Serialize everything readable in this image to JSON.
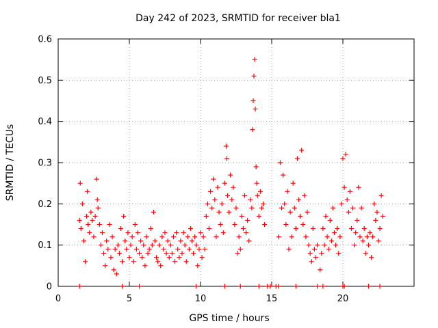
{
  "chart_data": {
    "type": "scatter",
    "title": "Day 242 of 2023, SRMTID for receiver bla1",
    "xlabel": "GPS time / hours",
    "ylabel": "SRMTID / TECUs",
    "xlim": [
      0,
      25
    ],
    "ylim": [
      0,
      0.6
    ],
    "xticks": [
      0,
      5,
      10,
      15,
      20
    ],
    "yticks": [
      0,
      0.1,
      0.2,
      0.3,
      0.4,
      0.5,
      0.6
    ],
    "ytick_labels": [
      "0",
      "0.1",
      "0.2",
      "0.3",
      "0.4",
      "0.5",
      "0.6"
    ],
    "xtick_labels": [
      "0",
      "5",
      "10",
      "15",
      "20"
    ],
    "grid": true,
    "marker": "+",
    "series_color": "#ff0000",
    "series": [
      {
        "name": "SRMTID",
        "points": [
          [
            1.5,
            0.16
          ],
          [
            1.55,
            0.25
          ],
          [
            1.6,
            0.14
          ],
          [
            1.7,
            0.2
          ],
          [
            1.8,
            0.11
          ],
          [
            1.9,
            0.06
          ],
          [
            2.0,
            0.17
          ],
          [
            2.05,
            0.23
          ],
          [
            2.1,
            0.15
          ],
          [
            2.2,
            0.13
          ],
          [
            2.3,
            0.18
          ],
          [
            2.4,
            0.16
          ],
          [
            2.5,
            0.12
          ],
          [
            2.6,
            0.17
          ],
          [
            2.7,
            0.26
          ],
          [
            2.75,
            0.21
          ],
          [
            2.8,
            0.19
          ],
          [
            2.9,
            0.15
          ],
          [
            3.0,
            0.1
          ],
          [
            3.1,
            0.13
          ],
          [
            3.2,
            0.08
          ],
          [
            3.3,
            0.05
          ],
          [
            3.4,
            0.11
          ],
          [
            3.5,
            0.09
          ],
          [
            3.6,
            0.15
          ],
          [
            3.7,
            0.07
          ],
          [
            3.8,
            0.12
          ],
          [
            3.9,
            0.04
          ],
          [
            4.0,
            0.09
          ],
          [
            4.1,
            0.03
          ],
          [
            4.2,
            0.1
          ],
          [
            4.3,
            0.08
          ],
          [
            4.4,
            0.14
          ],
          [
            4.5,
            0.06
          ],
          [
            4.6,
            0.17
          ],
          [
            4.7,
            0.11
          ],
          [
            4.8,
            0.09
          ],
          [
            4.9,
            0.13
          ],
          [
            5.0,
            0.07
          ],
          [
            5.1,
            0.1
          ],
          [
            5.2,
            0.12
          ],
          [
            5.3,
            0.06
          ],
          [
            5.4,
            0.15
          ],
          [
            5.5,
            0.09
          ],
          [
            5.6,
            0.13
          ],
          [
            5.7,
            0.08
          ],
          [
            5.8,
            0.11
          ],
          [
            5.9,
            0.07
          ],
          [
            6.0,
            0.1
          ],
          [
            6.1,
            0.05
          ],
          [
            6.2,
            0.12
          ],
          [
            6.3,
            0.08
          ],
          [
            6.4,
            0.09
          ],
          [
            6.5,
            0.14
          ],
          [
            6.6,
            0.1
          ],
          [
            6.7,
            0.18
          ],
          [
            6.8,
            0.11
          ],
          [
            6.9,
            0.07
          ],
          [
            7.0,
            0.06
          ],
          [
            7.1,
            0.1
          ],
          [
            7.2,
            0.05
          ],
          [
            7.3,
            0.12
          ],
          [
            7.4,
            0.09
          ],
          [
            7.5,
            0.13
          ],
          [
            7.6,
            0.08
          ],
          [
            7.7,
            0.11
          ],
          [
            7.8,
            0.07
          ],
          [
            7.9,
            0.1
          ],
          [
            8.0,
            0.08
          ],
          [
            8.1,
            0.12
          ],
          [
            8.2,
            0.06
          ],
          [
            8.3,
            0.13
          ],
          [
            8.4,
            0.09
          ],
          [
            8.5,
            0.07
          ],
          [
            8.6,
            0.11
          ],
          [
            8.7,
            0.08
          ],
          [
            8.8,
            0.13
          ],
          [
            8.9,
            0.1
          ],
          [
            9.0,
            0.06
          ],
          [
            9.1,
            0.12
          ],
          [
            9.2,
            0.09
          ],
          [
            9.3,
            0.14
          ],
          [
            9.4,
            0.11
          ],
          [
            9.5,
            0.08
          ],
          [
            9.6,
            0.12
          ],
          [
            9.7,
            0.1
          ],
          [
            9.8,
            0.05
          ],
          [
            9.9,
            0.09
          ],
          [
            10.0,
            0.13
          ],
          [
            10.1,
            0.07
          ],
          [
            10.2,
            0.12
          ],
          [
            10.3,
            0.09
          ],
          [
            10.4,
            0.17
          ],
          [
            10.5,
            0.2
          ],
          [
            10.6,
            0.14
          ],
          [
            10.7,
            0.23
          ],
          [
            10.8,
            0.19
          ],
          [
            10.9,
            0.26
          ],
          [
            11.0,
            0.21
          ],
          [
            11.1,
            0.12
          ],
          [
            11.2,
            0.24
          ],
          [
            11.3,
            0.18
          ],
          [
            11.4,
            0.15
          ],
          [
            11.5,
            0.2
          ],
          [
            11.6,
            0.13
          ],
          [
            11.7,
            0.25
          ],
          [
            11.8,
            0.34
          ],
          [
            11.85,
            0.31
          ],
          [
            11.9,
            0.22
          ],
          [
            12.0,
            0.18
          ],
          [
            12.1,
            0.27
          ],
          [
            12.2,
            0.21
          ],
          [
            12.3,
            0.24
          ],
          [
            12.4,
            0.15
          ],
          [
            12.5,
            0.19
          ],
          [
            12.6,
            0.08
          ],
          [
            12.7,
            0.12
          ],
          [
            12.8,
            0.09
          ],
          [
            12.9,
            0.17
          ],
          [
            13.0,
            0.14
          ],
          [
            13.1,
            0.22
          ],
          [
            13.2,
            0.13
          ],
          [
            13.3,
            0.16
          ],
          [
            13.4,
            0.11
          ],
          [
            13.5,
            0.21
          ],
          [
            13.6,
            0.19
          ],
          [
            13.65,
            0.38
          ],
          [
            13.7,
            0.45
          ],
          [
            13.75,
            0.51
          ],
          [
            13.8,
            0.55
          ],
          [
            13.85,
            0.43
          ],
          [
            13.9,
            0.29
          ],
          [
            13.95,
            0.25
          ],
          [
            14.0,
            0.22
          ],
          [
            14.1,
            0.17
          ],
          [
            14.2,
            0.23
          ],
          [
            14.3,
            0.19
          ],
          [
            14.4,
            0.2
          ],
          [
            14.5,
            0.15
          ],
          [
            15.5,
            0.12
          ],
          [
            15.6,
            0.3
          ],
          [
            15.7,
            0.19
          ],
          [
            15.8,
            0.27
          ],
          [
            15.9,
            0.2
          ],
          [
            16.0,
            0.15
          ],
          [
            16.1,
            0.23
          ],
          [
            16.2,
            0.09
          ],
          [
            16.3,
            0.18
          ],
          [
            16.4,
            0.12
          ],
          [
            16.5,
            0.25
          ],
          [
            16.6,
            0.19
          ],
          [
            16.7,
            0.14
          ],
          [
            16.8,
            0.31
          ],
          [
            16.9,
            0.21
          ],
          [
            17.0,
            0.17
          ],
          [
            17.1,
            0.33
          ],
          [
            17.2,
            0.15
          ],
          [
            17.3,
            0.22
          ],
          [
            17.4,
            0.12
          ],
          [
            17.5,
            0.18
          ],
          [
            17.6,
            0.1
          ],
          [
            17.7,
            0.08
          ],
          [
            17.8,
            0.06
          ],
          [
            17.9,
            0.14
          ],
          [
            18.0,
            0.09
          ],
          [
            18.1,
            0.07
          ],
          [
            18.2,
            0.1
          ],
          [
            18.4,
            0.04
          ],
          [
            18.5,
            0.08
          ],
          [
            18.6,
            0.14
          ],
          [
            18.7,
            0.1
          ],
          [
            18.8,
            0.17
          ],
          [
            18.9,
            0.12
          ],
          [
            19.0,
            0.09
          ],
          [
            19.1,
            0.16
          ],
          [
            19.2,
            0.11
          ],
          [
            19.3,
            0.19
          ],
          [
            19.4,
            0.13
          ],
          [
            19.5,
            0.1
          ],
          [
            19.6,
            0.14
          ],
          [
            19.7,
            0.08
          ],
          [
            19.8,
            0.12
          ],
          [
            19.9,
            0.2
          ],
          [
            20.0,
            0.31
          ],
          [
            20.1,
            0.24
          ],
          [
            20.2,
            0.32
          ],
          [
            20.3,
            0.21
          ],
          [
            20.4,
            0.18
          ],
          [
            20.5,
            0.23
          ],
          [
            20.6,
            0.14
          ],
          [
            20.7,
            0.19
          ],
          [
            20.8,
            0.1
          ],
          [
            20.9,
            0.13
          ],
          [
            21.0,
            0.16
          ],
          [
            21.1,
            0.24
          ],
          [
            21.2,
            0.12
          ],
          [
            21.3,
            0.19
          ],
          [
            21.4,
            0.11
          ],
          [
            21.5,
            0.14
          ],
          [
            21.6,
            0.08
          ],
          [
            21.7,
            0.12
          ],
          [
            21.8,
            0.1
          ],
          [
            21.9,
            0.13
          ],
          [
            22.0,
            0.07
          ],
          [
            22.1,
            0.12
          ],
          [
            22.2,
            0.2
          ],
          [
            22.3,
            0.16
          ],
          [
            22.4,
            0.18
          ],
          [
            22.5,
            0.11
          ],
          [
            22.6,
            0.14
          ],
          [
            22.7,
            0.22
          ],
          [
            22.8,
            0.17
          ]
        ]
      }
    ],
    "zero_markers_x": [
      1.5,
      4.5,
      5.7,
      9.7,
      11.7,
      12.8,
      14.1,
      14.7,
      14.9,
      15.3,
      15.5,
      16.7,
      18.2,
      18.6,
      20.0,
      20.1,
      21.8,
      22.6
    ]
  }
}
